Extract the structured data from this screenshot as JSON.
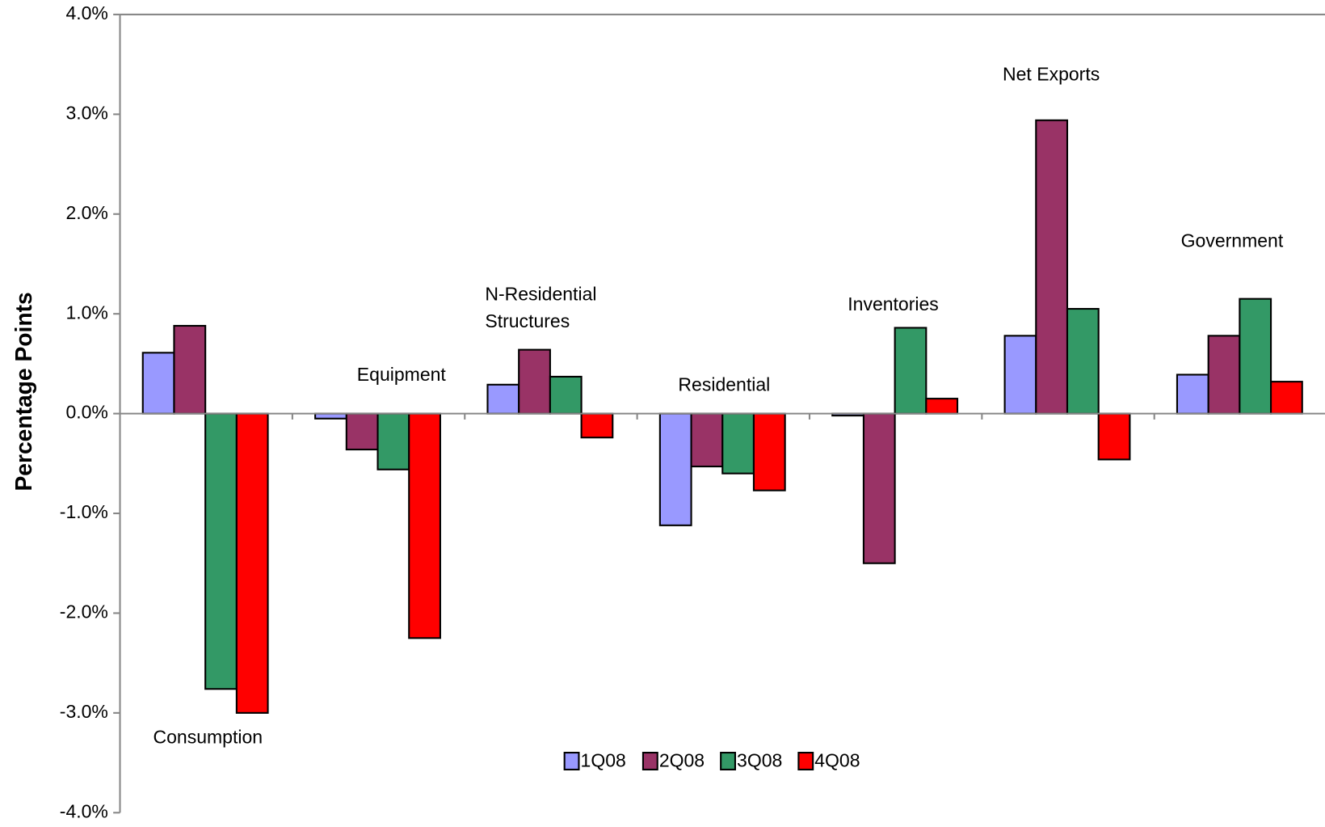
{
  "chart_data": {
    "type": "bar",
    "y_label": "Percentage Points",
    "categories": [
      "Consumption",
      "Equipment",
      "N-Residential Structures",
      "Residential",
      "Inventories",
      "Net Exports",
      "Government"
    ],
    "series": [
      {
        "name": "1Q08",
        "color": "#9999ff",
        "values": [
          0.61,
          -0.05,
          0.29,
          -1.12,
          -0.02,
          0.78,
          0.39
        ]
      },
      {
        "name": "2Q08",
        "color": "#993366",
        "values": [
          0.88,
          -0.36,
          0.64,
          -0.53,
          -1.5,
          2.94,
          0.78
        ]
      },
      {
        "name": "3Q08",
        "color": "#339966",
        "values": [
          -2.76,
          -0.56,
          0.37,
          -0.6,
          0.86,
          1.05,
          1.15
        ]
      },
      {
        "name": "4Q08",
        "color": "#ff0000",
        "values": [
          -3.0,
          -2.25,
          -0.24,
          -0.77,
          0.15,
          -0.46,
          0.32
        ]
      }
    ],
    "ylim": [
      -4,
      4
    ],
    "yticks": [
      {
        "value": -4,
        "label": "-4.0%"
      },
      {
        "value": -3,
        "label": "-3.0%"
      },
      {
        "value": -2,
        "label": "-2.0%"
      },
      {
        "value": -1,
        "label": "-1.0%"
      },
      {
        "value": 0,
        "label": "0.0%"
      },
      {
        "value": 1,
        "label": "1.0%"
      },
      {
        "value": 2,
        "label": "2.0%"
      },
      {
        "value": 3,
        "label": "3.0%"
      },
      {
        "value": 4,
        "label": "4.0%"
      }
    ]
  }
}
